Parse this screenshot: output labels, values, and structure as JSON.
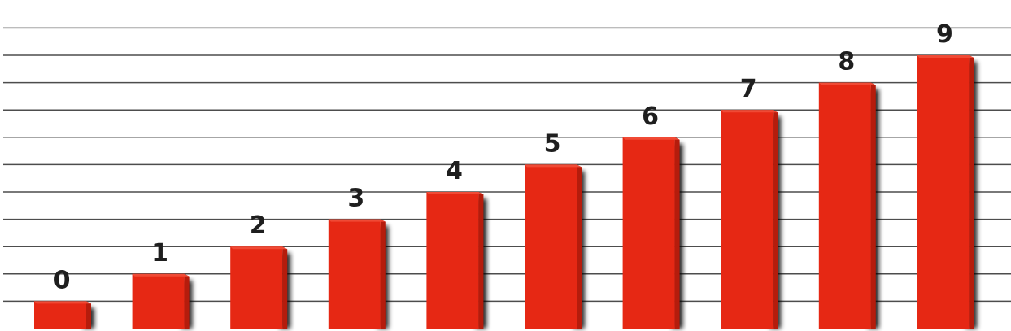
{
  "chart_data": {
    "type": "bar",
    "categories": [
      "0",
      "1",
      "2",
      "3",
      "4",
      "5",
      "6",
      "7",
      "8",
      "9"
    ],
    "values": [
      1,
      2,
      3,
      4,
      5,
      6,
      7,
      8,
      9,
      10
    ],
    "title": "",
    "xlabel": "",
    "ylabel": "",
    "ylim": [
      0,
      11
    ],
    "grid": true,
    "legend": "none",
    "colors": {
      "bar": "#e62814",
      "bar_side": "#b51c0c",
      "bar_top": "#f04a35",
      "grid": "#4d4d4d"
    }
  }
}
